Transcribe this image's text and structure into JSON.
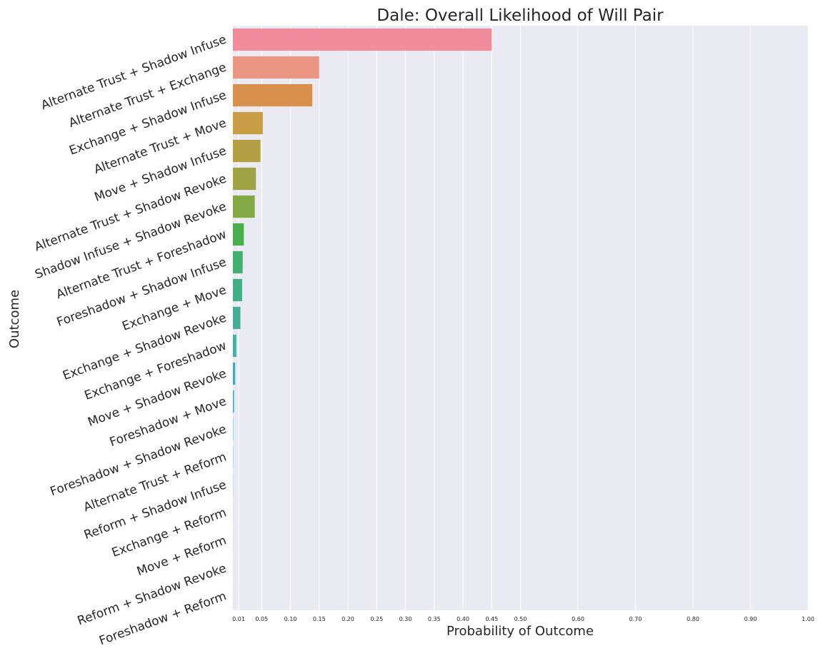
{
  "chart_data": {
    "type": "bar",
    "orientation": "horizontal",
    "title": "Dale: Overall Likelihood of Will Pair",
    "xlabel": "Probability of Outcome",
    "ylabel": "Outcome",
    "xlim": [
      0,
      1.0
    ],
    "xticks": [
      0.01,
      0.05,
      0.1,
      0.15,
      0.2,
      0.25,
      0.3,
      0.35,
      0.4,
      0.45,
      0.5,
      0.6,
      0.7,
      0.8,
      0.9,
      1.0
    ],
    "xtick_labels": [
      "0.01",
      "0.05",
      "0.10",
      "0.15",
      "0.20",
      "0.25",
      "0.30",
      "0.35",
      "0.40",
      "0.45",
      "0.50",
      "0.60",
      "0.70",
      "0.80",
      "0.90",
      "1.00"
    ],
    "grid": true,
    "background": "#eaeaf2",
    "categories": [
      "Alternate Trust + Shadow Infuse",
      "Alternate Trust + Exchange",
      "Exchange + Shadow Infuse",
      "Alternate Trust + Move",
      "Move + Shadow Infuse",
      "Alternate Trust + Shadow Revoke",
      "Shadow Infuse + Shadow Revoke",
      "Alternate Trust + Foreshadow",
      "Foreshadow + Shadow Infuse",
      "Exchange + Move",
      "Exchange + Shadow Revoke",
      "Exchange + Foreshadow",
      "Move + Shadow Revoke",
      "Foreshadow + Move",
      "Foreshadow + Shadow Revoke",
      "Alternate Trust + Reform",
      "Reform + Shadow Infuse",
      "Exchange + Reform",
      "Move + Reform",
      "Reform + Shadow Revoke",
      "Foreshadow + Reform"
    ],
    "values": [
      0.45,
      0.15,
      0.138,
      0.052,
      0.048,
      0.04,
      0.038,
      0.019,
      0.017,
      0.016,
      0.013,
      0.006,
      0.004,
      0.002,
      0.0005,
      0.0004,
      0.0003,
      0.0002,
      0.0002,
      0.0001,
      0.0001
    ],
    "colors": [
      "#f08c9c",
      "#eb9583",
      "#d8904d",
      "#c89d45",
      "#b3a044",
      "#9ea444",
      "#83a946",
      "#4aae4f",
      "#43b06e",
      "#44ae86",
      "#46ac96",
      "#48aba4",
      "#49aab2",
      "#4aa9bf",
      "#4da6cd",
      "#62a1db",
      "#8f98e4",
      "#b58deb",
      "#d283e5",
      "#e67fcc",
      "#ef86b1"
    ]
  }
}
